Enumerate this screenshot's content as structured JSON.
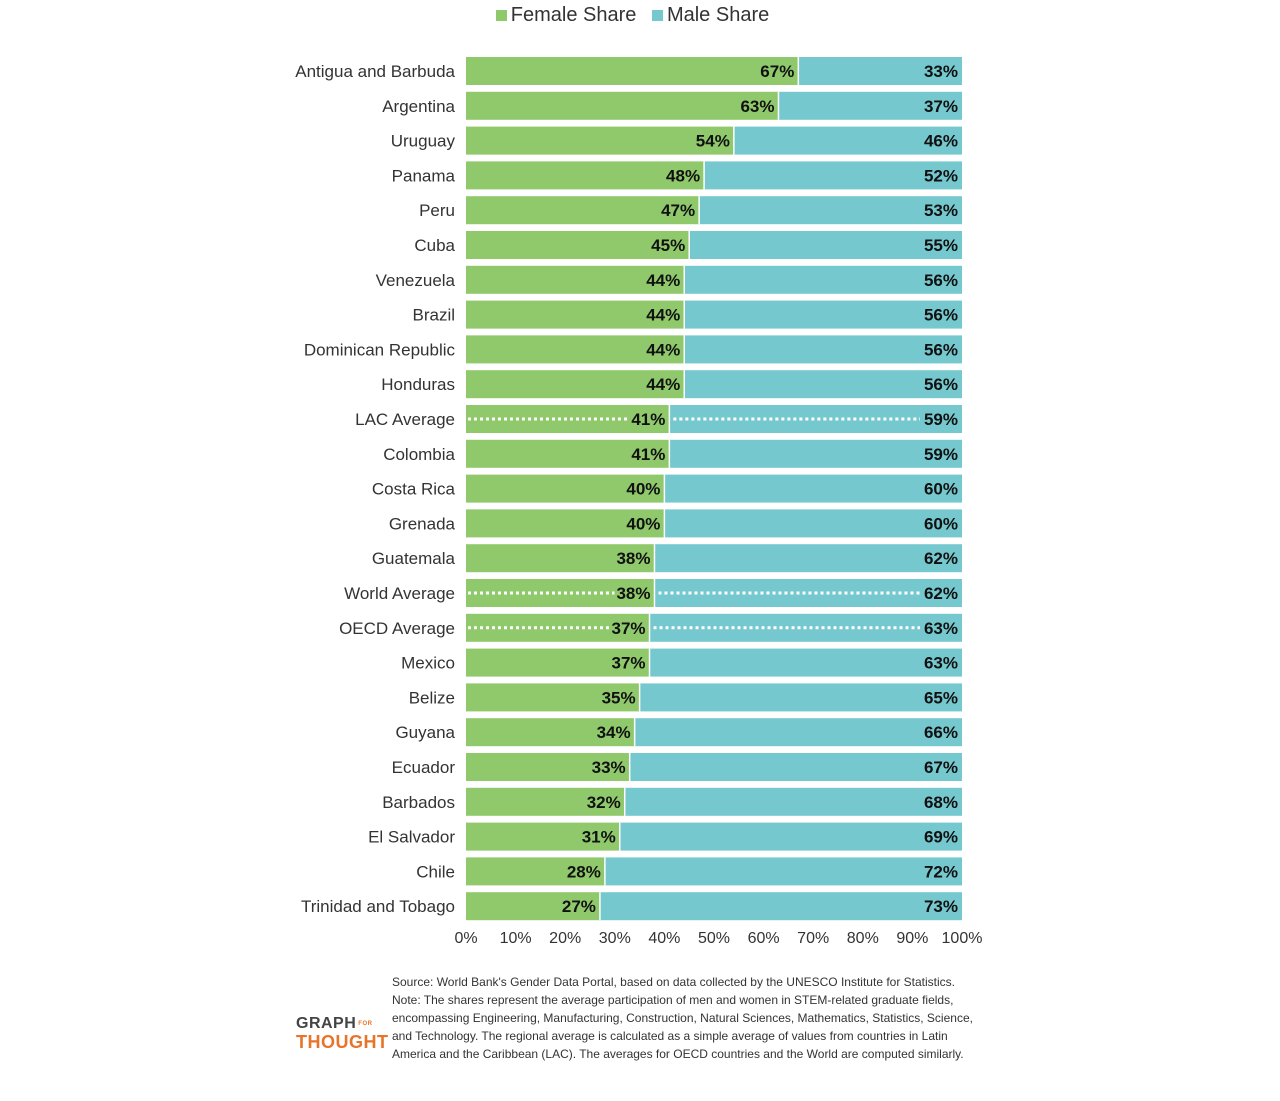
{
  "legend": {
    "female_label": "Female Share",
    "male_label": "Male Share"
  },
  "colors": {
    "female": "#8fc96b",
    "male": "#76c8cf",
    "text": "#333333"
  },
  "chart_data": {
    "type": "bar",
    "orientation": "horizontal",
    "stacked": true,
    "percent_format": "%",
    "xlim": [
      0,
      100
    ],
    "x_ticks": [
      "0%",
      "10%",
      "20%",
      "30%",
      "40%",
      "50%",
      "60%",
      "70%",
      "80%",
      "90%",
      "100%"
    ],
    "categories": [
      "Antigua and Barbuda",
      "Argentina",
      "Uruguay",
      "Panama",
      "Peru",
      "Cuba",
      "Venezuela",
      "Brazil",
      "Dominican Republic",
      "Honduras",
      "LAC Average",
      "Colombia",
      "Costa Rica",
      "Grenada",
      "Guatemala",
      "World Average",
      "OECD Average",
      "Mexico",
      "Belize",
      "Guyana",
      "Ecuador",
      "Barbados",
      "El Salvador",
      "Chile",
      "Trinidad and Tobago"
    ],
    "series": [
      {
        "name": "Female Share",
        "values": [
          67,
          63,
          54,
          48,
          47,
          45,
          44,
          44,
          44,
          44,
          41,
          41,
          40,
          40,
          38,
          38,
          37,
          37,
          35,
          34,
          33,
          32,
          31,
          28,
          27
        ]
      },
      {
        "name": "Male Share",
        "values": [
          33,
          37,
          46,
          52,
          53,
          55,
          56,
          56,
          56,
          56,
          59,
          59,
          60,
          60,
          62,
          62,
          63,
          63,
          65,
          66,
          67,
          68,
          69,
          72,
          73
        ]
      }
    ],
    "averages": [
      "LAC Average",
      "World Average",
      "OECD Average"
    ],
    "legend_position": "top-center",
    "grid": false
  },
  "footer": {
    "source": "Source: World Bank's Gender Data Portal, based on data collected by the UNESCO Institute for Statistics.",
    "note": "Note: The shares represent the average participation of men and women in STEM-related graduate fields, encompassing Engineering, Manufacturing, Construction, Natural Sciences, Mathematics, Statistics, Science, and Technology. The regional average is calculated as a simple average of values from countries in Latin America and the Caribbean (LAC). The averages for OECD countries and the World are computed similarly."
  },
  "logo": {
    "line1": "GRAPH",
    "small": "FOR",
    "line2": "THOUGHT"
  }
}
